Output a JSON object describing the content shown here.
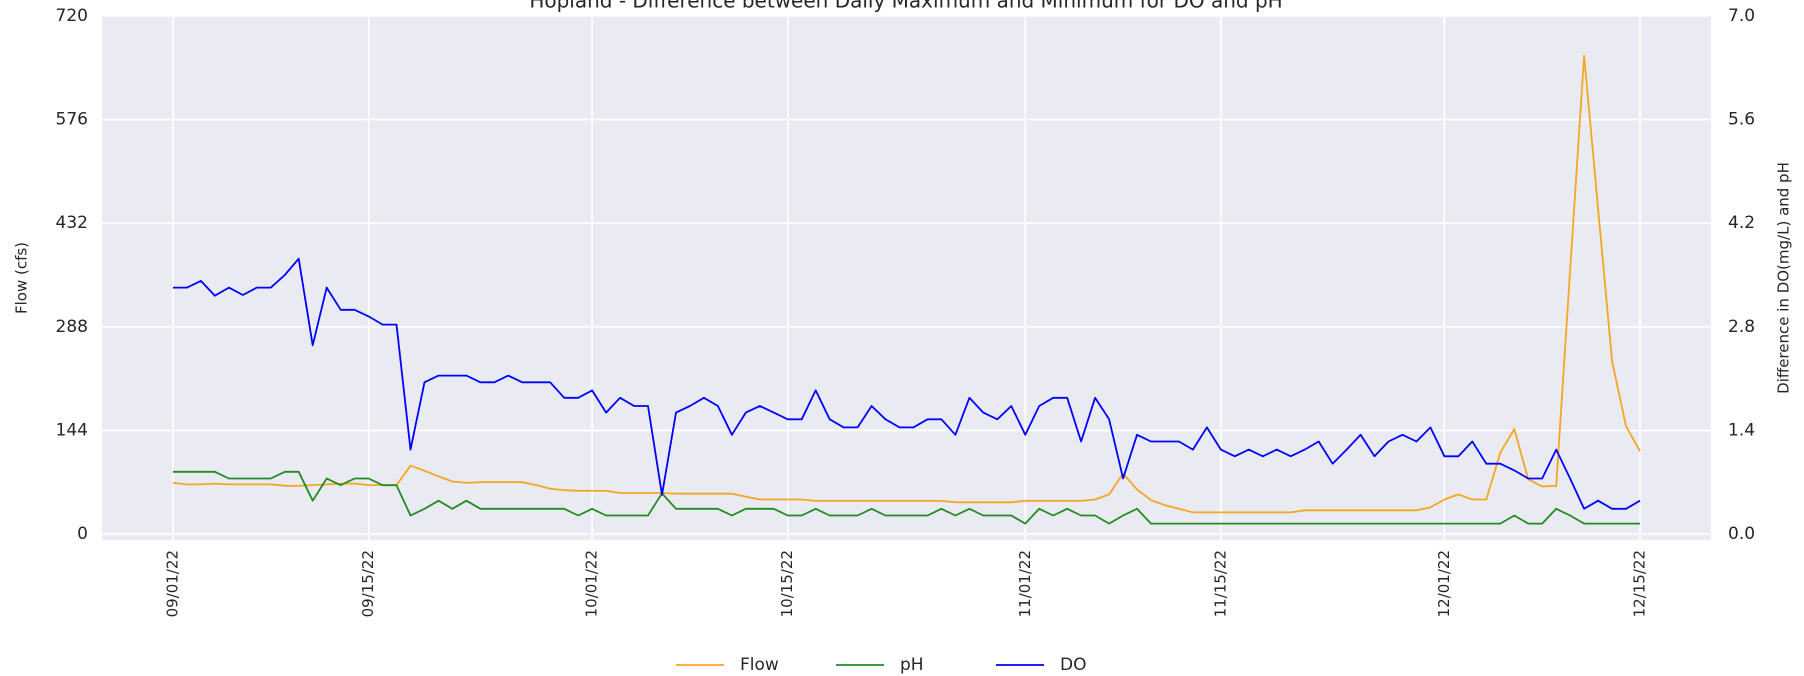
{
  "chart_data": {
    "type": "line",
    "title": "Hopland - Difference between Daily Maximum and Minimum for DO and pH",
    "ylabel": "Flow (cfs)",
    "y2label": "Difference in DO(mg/L) and pH",
    "x": [
      "09/01/22",
      "09/02/22",
      "09/03/22",
      "09/04/22",
      "09/05/22",
      "09/06/22",
      "09/07/22",
      "09/08/22",
      "09/09/22",
      "09/10/22",
      "09/11/22",
      "09/12/22",
      "09/13/22",
      "09/14/22",
      "09/15/22",
      "09/16/22",
      "09/17/22",
      "09/18/22",
      "09/19/22",
      "09/20/22",
      "09/21/22",
      "09/22/22",
      "09/23/22",
      "09/24/22",
      "09/25/22",
      "09/26/22",
      "09/27/22",
      "09/28/22",
      "09/29/22",
      "09/30/22",
      "10/01/22",
      "10/02/22",
      "10/03/22",
      "10/04/22",
      "10/05/22",
      "10/06/22",
      "10/07/22",
      "10/08/22",
      "10/09/22",
      "10/10/22",
      "10/11/22",
      "10/12/22",
      "10/13/22",
      "10/14/22",
      "10/15/22",
      "10/16/22",
      "10/17/22",
      "10/18/22",
      "10/19/22",
      "10/20/22",
      "10/21/22",
      "10/22/22",
      "10/23/22",
      "10/24/22",
      "10/25/22",
      "10/26/22",
      "10/27/22",
      "10/28/22",
      "10/29/22",
      "10/30/22",
      "10/31/22",
      "11/01/22",
      "11/02/22",
      "11/03/22",
      "11/04/22",
      "11/05/22",
      "11/06/22",
      "11/07/22",
      "11/08/22",
      "11/09/22",
      "11/10/22",
      "11/11/22",
      "11/12/22",
      "11/13/22",
      "11/14/22",
      "11/15/22",
      "11/16/22",
      "11/17/22",
      "11/18/22",
      "11/19/22",
      "11/20/22",
      "11/21/22",
      "11/22/22",
      "11/23/22",
      "11/24/22",
      "11/25/22",
      "11/26/22",
      "11/27/22",
      "11/28/22",
      "11/29/22",
      "11/30/22",
      "12/01/22",
      "12/02/22",
      "12/03/22",
      "12/04/22",
      "12/05/22",
      "12/06/22",
      "12/07/22",
      "12/08/22",
      "12/09/22",
      "12/10/22",
      "12/11/22",
      "12/12/22",
      "12/13/22",
      "12/14/22",
      "12/15/22"
    ],
    "xticks": [
      "09/01/22",
      "09/15/22",
      "10/01/22",
      "10/15/22",
      "11/01/22",
      "11/15/22",
      "12/01/22",
      "12/15/22"
    ],
    "ylim": [
      0,
      720
    ],
    "yticks": [
      0,
      144,
      288,
      432,
      576,
      720
    ],
    "y2lim": [
      0,
      7
    ],
    "y2ticks": [
      {
        "value": 0,
        "label": "0.0"
      },
      1.4,
      2.8,
      4.2,
      5.6,
      {
        "value": 7,
        "label": "7.0"
      }
    ],
    "grid": true,
    "legend": "lower center",
    "series": [
      {
        "name": "Flow",
        "color": "#f5a623",
        "values": [
          71,
          69,
          69,
          70,
          69,
          69,
          69,
          69,
          67,
          67,
          68,
          69,
          70,
          70,
          68,
          68,
          68,
          95,
          88,
          80,
          73,
          71,
          72,
          72,
          72,
          72,
          68,
          63,
          61,
          60,
          60,
          60,
          57,
          57,
          57,
          57,
          56,
          56,
          56,
          56,
          56,
          52,
          48,
          48,
          48,
          48,
          46,
          46,
          46,
          46,
          46,
          46,
          46,
          46,
          46,
          46,
          44,
          44,
          44,
          44,
          44,
          46,
          46,
          46,
          46,
          46,
          48,
          55,
          84,
          62,
          47,
          40,
          35,
          30,
          30,
          30,
          30,
          30,
          30,
          30,
          30,
          33,
          33,
          33,
          33,
          33,
          33,
          33,
          33,
          33,
          37,
          48,
          55,
          48,
          48,
          113,
          146,
          76,
          66,
          67,
          366,
          665,
          452,
          240,
          150,
          115
        ]
      },
      {
        "name": "pH",
        "color": "#228b22",
        "axis": "y2",
        "values": [
          0.84,
          0.84,
          0.84,
          0.84,
          0.75,
          0.75,
          0.75,
          0.75,
          0.84,
          0.84,
          0.45,
          0.75,
          0.66,
          0.75,
          0.75,
          0.66,
          0.66,
          0.25,
          0.34,
          0.45,
          0.34,
          0.45,
          0.34,
          0.34,
          0.34,
          0.34,
          0.34,
          0.34,
          0.34,
          0.25,
          0.34,
          0.25,
          0.25,
          0.25,
          0.25,
          0.55,
          0.34,
          0.34,
          0.34,
          0.34,
          0.25,
          0.34,
          0.34,
          0.34,
          0.25,
          0.25,
          0.34,
          0.25,
          0.25,
          0.25,
          0.34,
          0.25,
          0.25,
          0.25,
          0.25,
          0.34,
          0.25,
          0.34,
          0.25,
          0.25,
          0.25,
          0.14,
          0.34,
          0.25,
          0.34,
          0.25,
          0.25,
          0.14,
          0.25,
          0.34,
          0.14,
          0.14,
          0.14,
          0.14,
          0.14,
          0.14,
          0.14,
          0.14,
          0.14,
          0.14,
          0.14,
          0.14,
          0.14,
          0.14,
          0.14,
          0.14,
          0.14,
          0.14,
          0.14,
          0.14,
          0.14,
          0.14,
          0.14,
          0.14,
          0.14,
          0.14,
          0.25,
          0.14,
          0.14,
          0.34,
          0.25,
          0.14,
          0.14,
          0.14,
          0.14,
          0.14
        ]
      },
      {
        "name": "DO",
        "color": "#0000ff",
        "axis": "y2",
        "values": [
          3.33,
          3.33,
          3.42,
          3.22,
          3.33,
          3.23,
          3.33,
          3.33,
          3.5,
          3.72,
          2.55,
          3.33,
          3.03,
          3.03,
          2.94,
          2.83,
          2.83,
          1.14,
          2.05,
          2.14,
          2.14,
          2.14,
          2.05,
          2.05,
          2.14,
          2.05,
          2.05,
          2.05,
          1.84,
          1.84,
          1.94,
          1.64,
          1.84,
          1.73,
          1.73,
          0.53,
          1.64,
          1.73,
          1.84,
          1.73,
          1.34,
          1.64,
          1.73,
          1.64,
          1.55,
          1.55,
          1.94,
          1.55,
          1.44,
          1.44,
          1.73,
          1.55,
          1.44,
          1.44,
          1.55,
          1.55,
          1.34,
          1.84,
          1.64,
          1.55,
          1.73,
          1.34,
          1.73,
          1.84,
          1.84,
          1.25,
          1.84,
          1.55,
          0.75,
          1.34,
          1.25,
          1.25,
          1.25,
          1.14,
          1.44,
          1.14,
          1.05,
          1.14,
          1.05,
          1.14,
          1.05,
          1.14,
          1.25,
          0.95,
          1.14,
          1.34,
          1.05,
          1.25,
          1.34,
          1.25,
          1.44,
          1.05,
          1.05,
          1.25,
          0.95,
          0.95,
          0.86,
          0.75,
          0.75,
          1.14,
          0.75,
          0.34,
          0.45,
          0.34,
          0.34,
          0.45
        ]
      }
    ]
  }
}
